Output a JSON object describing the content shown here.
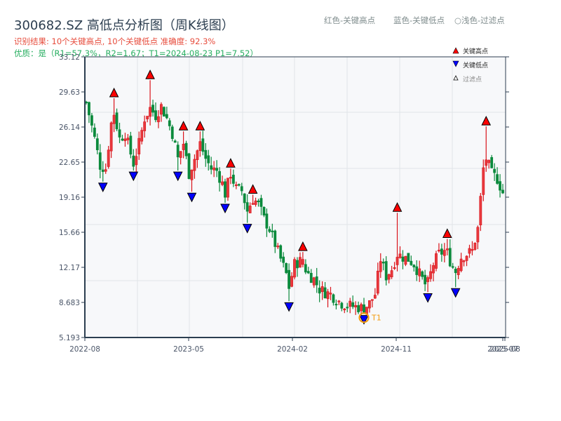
{
  "header": {
    "title": "300682.SZ 高低点分析图（周K线图）",
    "result_line": "识别结果: 10个关键高点, 10个关键低点   准确度: 92.3%",
    "quality_line": "优质：是（R1=57.3%，R2=1.67；T1=2024-08-23 P1=7.52）",
    "color_legend": [
      "红色-关键高点",
      "蓝色-关键低点",
      "○浅色-过滤点"
    ]
  },
  "colors": {
    "up": "#d9141b",
    "down": "#0b8a3c",
    "high_marker": "#ff0000",
    "low_marker": "#0000ff",
    "t1_ring": "#f39c12",
    "plot_bg": "#f7f8fa",
    "grid": "#e1e4e8",
    "axis": "#2c3e50"
  },
  "chart_data": {
    "type": "candlestick",
    "title": "300682.SZ 高低点分析图（周K线图）",
    "ylabel": "",
    "xlabel": "",
    "ylim": [
      5.193,
      33.12
    ],
    "yticks": [
      "33.12",
      "29.63",
      "26.14",
      "22.65",
      "19.16",
      "15.66",
      "12.17",
      "8.683",
      "5.193"
    ],
    "xticks": [
      "2022-08",
      "2023-05",
      "2024-02",
      "2024-11",
      "2025-07",
      "2025-08"
    ],
    "grid": true,
    "legend": {
      "position": "upper right",
      "entries": [
        "关键高点",
        "关键低点",
        "过滤点"
      ]
    },
    "key_highs": [
      {
        "idx": 10,
        "price": 29.0
      },
      {
        "idx": 23,
        "price": 30.8
      },
      {
        "idx": 35,
        "price": 25.7
      },
      {
        "idx": 41,
        "price": 25.7
      },
      {
        "idx": 52,
        "price": 22.0
      },
      {
        "idx": 60,
        "price": 19.4
      },
      {
        "idx": 78,
        "price": 13.7
      },
      {
        "idx": 112,
        "price": 17.6
      },
      {
        "idx": 130,
        "price": 15.0
      },
      {
        "idx": 144,
        "price": 26.2
      }
    ],
    "key_lows": [
      {
        "idx": 6,
        "price": 20.7
      },
      {
        "idx": 17,
        "price": 21.8
      },
      {
        "idx": 33,
        "price": 21.8
      },
      {
        "idx": 38,
        "price": 19.7
      },
      {
        "idx": 50,
        "price": 18.6
      },
      {
        "idx": 58,
        "price": 16.6
      },
      {
        "idx": 73,
        "price": 8.8
      },
      {
        "idx": 100,
        "price": 7.52
      },
      {
        "idx": 123,
        "price": 9.7
      },
      {
        "idx": 133,
        "price": 10.2
      }
    ],
    "annotation": {
      "label": "T1",
      "date": "2024-08-23",
      "price": 7.52
    },
    "close_path": [
      [
        0,
        28.6
      ],
      [
        3,
        25.0
      ],
      [
        5,
        22.3
      ],
      [
        7,
        22.0
      ],
      [
        9,
        26.5
      ],
      [
        10,
        27.5
      ],
      [
        12,
        25.0
      ],
      [
        14,
        25.5
      ],
      [
        16,
        23.5
      ],
      [
        17,
        22.5
      ],
      [
        19,
        24.5
      ],
      [
        21,
        27.0
      ],
      [
        23,
        28.0
      ],
      [
        25,
        27.3
      ],
      [
        27,
        28.2
      ],
      [
        29,
        27.0
      ],
      [
        31,
        25.5
      ],
      [
        33,
        23.0
      ],
      [
        35,
        24.5
      ],
      [
        37,
        21.5
      ],
      [
        39,
        23.0
      ],
      [
        41,
        24.5
      ],
      [
        43,
        23.0
      ],
      [
        45,
        22.0
      ],
      [
        47,
        21.8
      ],
      [
        49,
        20.5
      ],
      [
        50,
        19.5
      ],
      [
        52,
        21.5
      ],
      [
        54,
        20.0
      ],
      [
        56,
        19.8
      ],
      [
        58,
        17.8
      ],
      [
        60,
        19.0
      ],
      [
        62,
        18.5
      ],
      [
        64,
        17.0
      ],
      [
        66,
        16.0
      ],
      [
        68,
        14.5
      ],
      [
        70,
        13.0
      ],
      [
        72,
        11.5
      ],
      [
        73,
        10.2
      ],
      [
        75,
        12.5
      ],
      [
        77,
        12.8
      ],
      [
        78,
        12.5
      ],
      [
        80,
        11.5
      ],
      [
        82,
        11.0
      ],
      [
        84,
        10.0
      ],
      [
        86,
        9.7
      ],
      [
        88,
        9.5
      ],
      [
        90,
        9.0
      ],
      [
        92,
        8.6
      ],
      [
        94,
        8.4
      ],
      [
        96,
        8.3
      ],
      [
        98,
        8.2
      ],
      [
        100,
        8.1
      ],
      [
        102,
        8.6
      ],
      [
        104,
        9.5
      ],
      [
        106,
        13.0
      ],
      [
        108,
        11.3
      ],
      [
        110,
        12.0
      ],
      [
        112,
        13.5
      ],
      [
        114,
        13.2
      ],
      [
        116,
        13.0
      ],
      [
        118,
        12.5
      ],
      [
        120,
        11.5
      ],
      [
        122,
        10.5
      ],
      [
        123,
        10.6
      ],
      [
        125,
        12.5
      ],
      [
        127,
        13.5
      ],
      [
        129,
        13.8
      ],
      [
        130,
        13.5
      ],
      [
        132,
        12.2
      ],
      [
        133,
        11.8
      ],
      [
        135,
        13.2
      ],
      [
        137,
        13.5
      ],
      [
        139,
        13.8
      ],
      [
        141,
        16.0
      ],
      [
        143,
        22.0
      ],
      [
        144,
        23.0
      ],
      [
        146,
        21.5
      ],
      [
        148,
        21.0
      ],
      [
        150,
        19.6
      ]
    ],
    "n_bars": 151
  }
}
